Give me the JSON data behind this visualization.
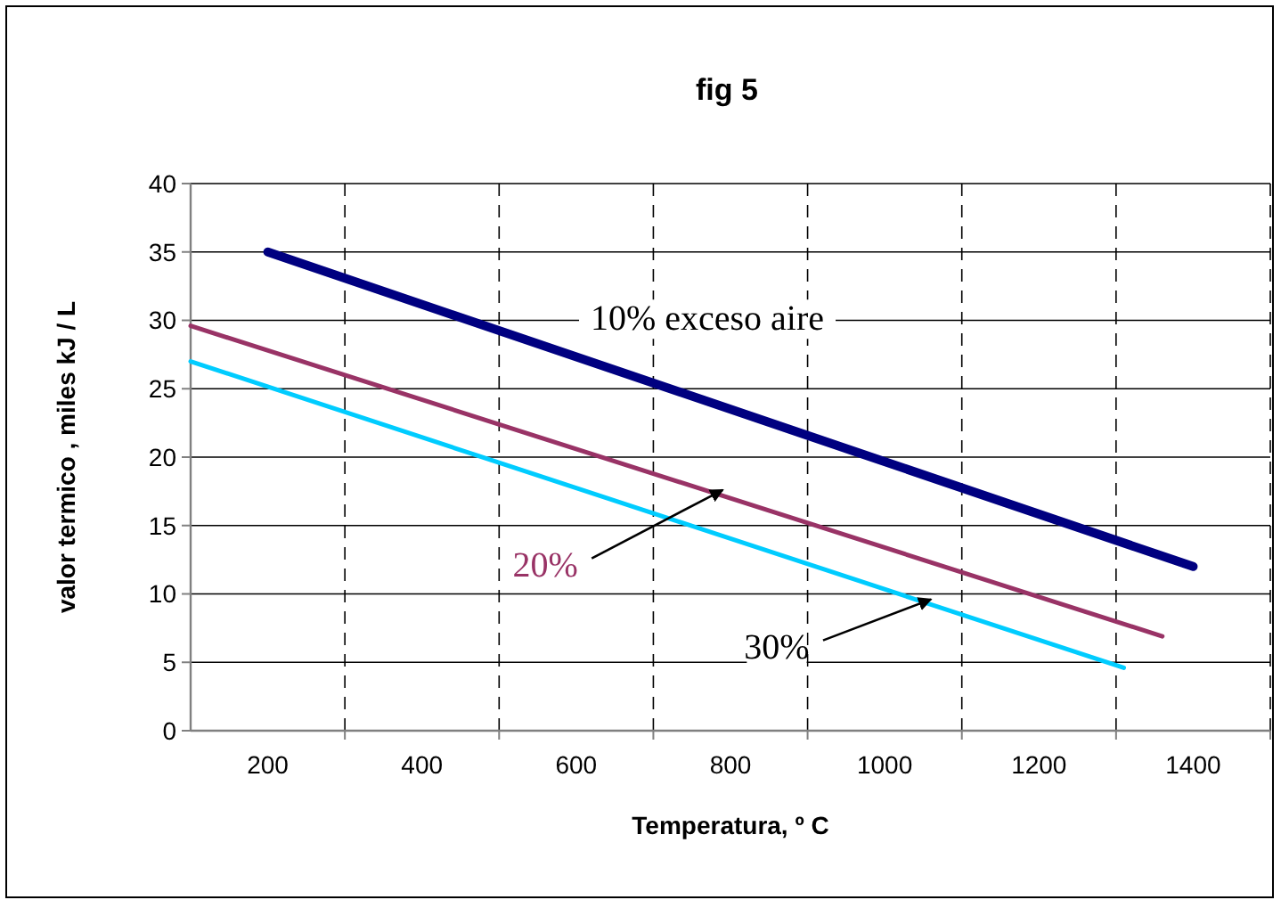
{
  "chart_data": {
    "type": "line",
    "title": "fig 5",
    "xlabel": "Temperatura, º C",
    "ylabel": "valor termico , miles kJ / L",
    "xlim": [
      100,
      1500
    ],
    "xticks": [
      {
        "value": 200,
        "label": "200"
      },
      {
        "value": 300,
        "label": null
      },
      {
        "value": 400,
        "label": "400"
      },
      {
        "value": 500,
        "label": null
      },
      {
        "value": 600,
        "label": "600"
      },
      {
        "value": 700,
        "label": null
      },
      {
        "value": 800,
        "label": "800"
      },
      {
        "value": 900,
        "label": null
      },
      {
        "value": 1000,
        "label": "1000"
      },
      {
        "value": 1100,
        "label": null
      },
      {
        "value": 1200,
        "label": "1200"
      },
      {
        "value": 1300,
        "label": null
      },
      {
        "value": 1400,
        "label": "1400"
      },
      {
        "value": 1500,
        "label": null
      }
    ],
    "ylim": [
      0,
      40
    ],
    "yticks": [
      0,
      5,
      10,
      15,
      20,
      25,
      30,
      35,
      40
    ],
    "grid": true,
    "series": [
      {
        "name": "10% exceso aire",
        "color": "#000080",
        "x": [
          200,
          1400
        ],
        "values": [
          35,
          12
        ]
      },
      {
        "name": "20%",
        "color": "#993366",
        "x": [
          100,
          1360
        ],
        "values": [
          29.6,
          6.9
        ]
      },
      {
        "name": "30%",
        "color": "#00ccff",
        "x": [
          100,
          1310
        ],
        "values": [
          27,
          4.6
        ]
      }
    ]
  }
}
